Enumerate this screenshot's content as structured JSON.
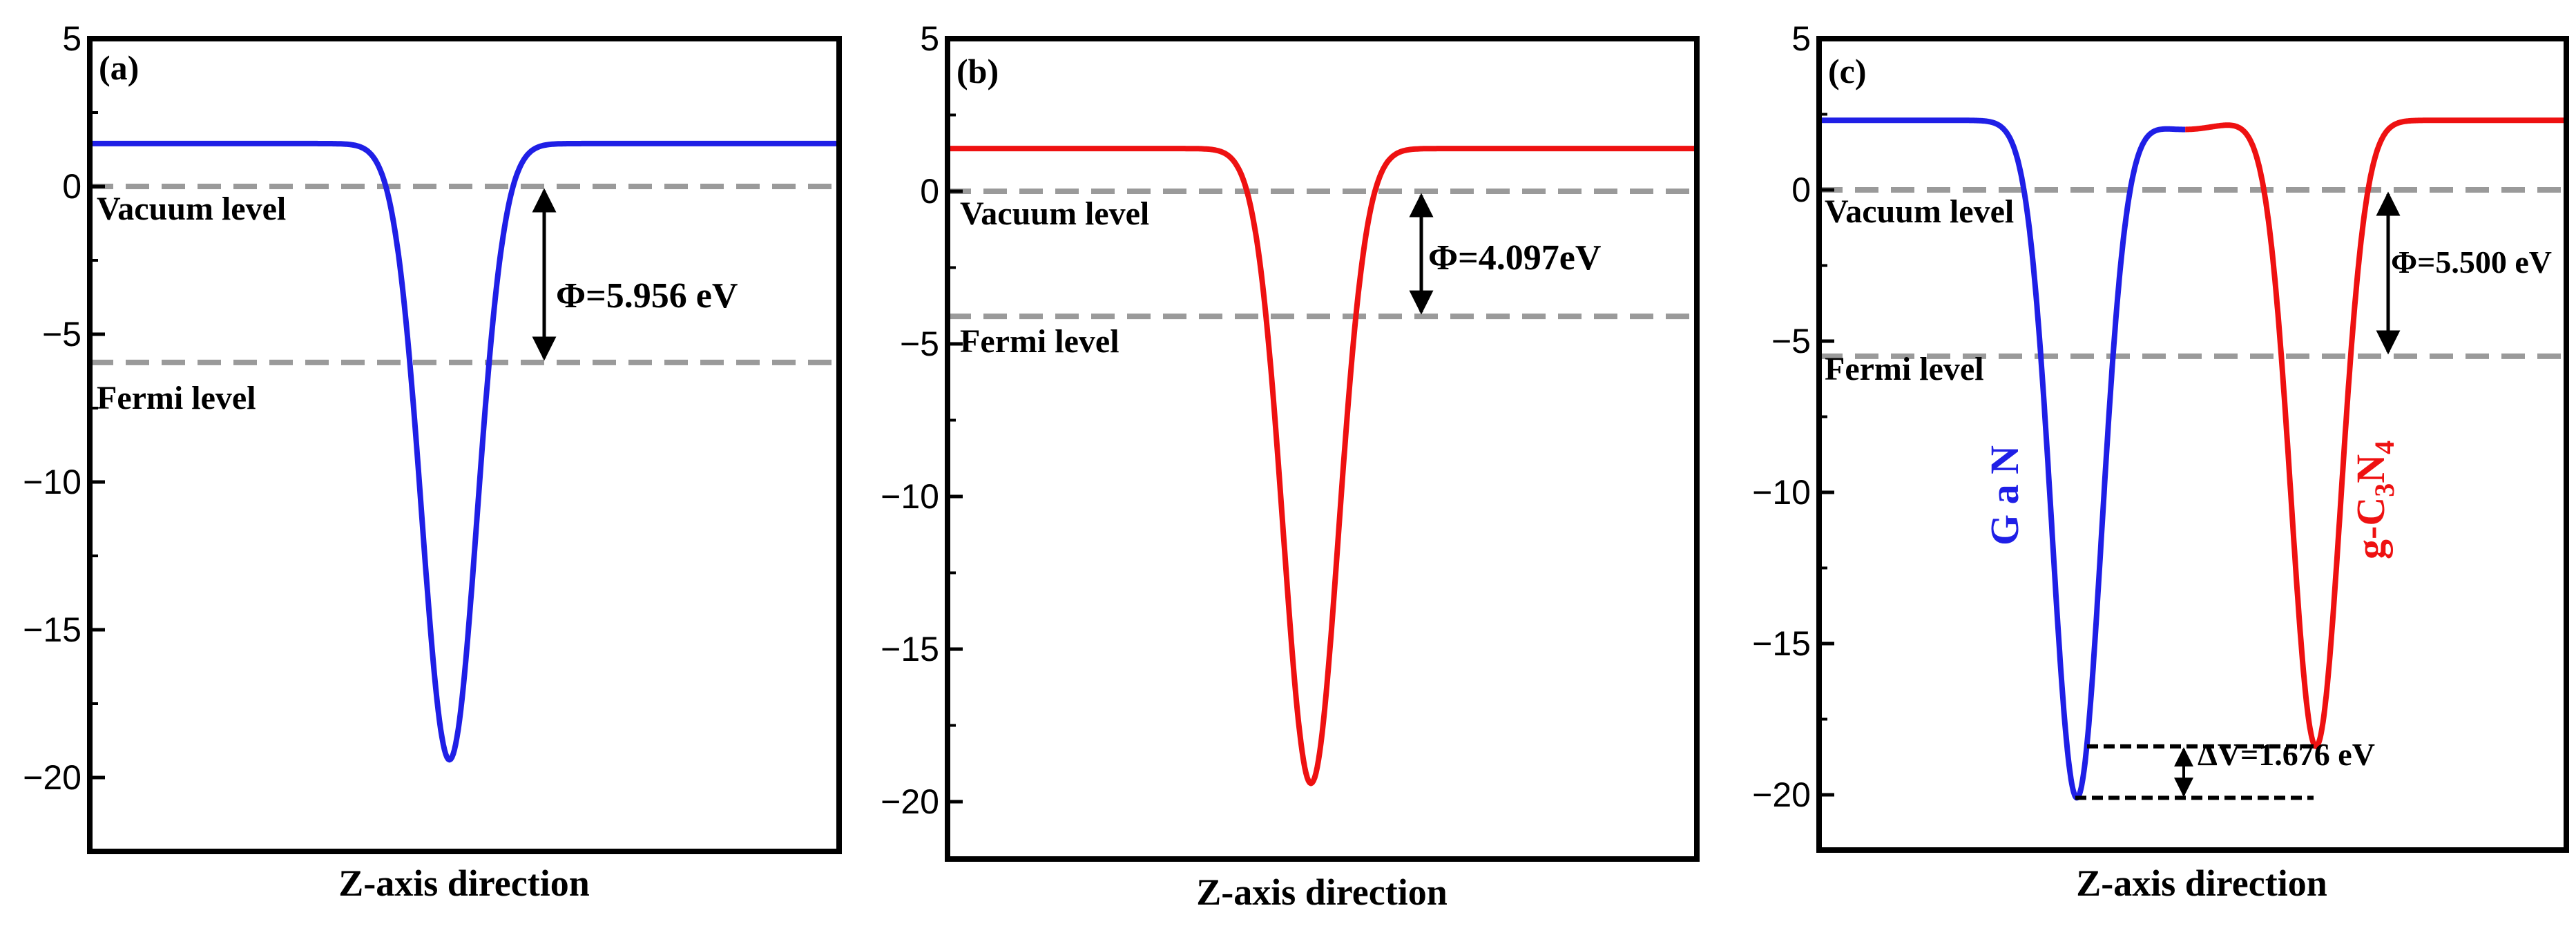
{
  "chart_data": [
    {
      "type": "line",
      "panel_label": "(a)",
      "xlabel": "Z-axis direction",
      "ylabel": "",
      "ylim": [
        -22.5,
        5
      ],
      "yticks": [
        5,
        0,
        -5,
        -10,
        -15,
        -20
      ],
      "ytick_labels": [
        "5",
        "0",
        "−5",
        "−10",
        "−15",
        "−20"
      ],
      "series": [
        {
          "name": "potential",
          "color": "#1f1fe6",
          "plateau": 1.45,
          "wells": [
            {
              "center": 0.48,
              "depth": -19.4,
              "width": 0.052
            }
          ]
        }
      ],
      "reference_lines": [
        {
          "name": "vacuum",
          "label": "Vacuum level",
          "value": 0
        },
        {
          "name": "fermi",
          "label": "Fermi level",
          "value": -5.956
        }
      ],
      "annotations": [
        {
          "kind": "phi",
          "text": "Φ=5.956 eV",
          "from": 0,
          "to": -5.956
        }
      ]
    },
    {
      "type": "line",
      "panel_label": "(b)",
      "xlabel": "Z-axis direction",
      "ylabel": "",
      "ylim": [
        -22.5,
        5
      ],
      "yticks": [
        5,
        0,
        -5,
        -10,
        -15,
        -20
      ],
      "ytick_labels": [
        "5",
        "0",
        "−5",
        "−10",
        "−15",
        "−20"
      ],
      "series": [
        {
          "name": "potential",
          "color": "#ee1111",
          "plateau": 1.4,
          "wells": [
            {
              "center": 0.485,
              "depth": -19.4,
              "width": 0.052
            }
          ]
        }
      ],
      "reference_lines": [
        {
          "name": "vacuum",
          "label": "Vacuum level",
          "value": 0
        },
        {
          "name": "fermi",
          "label": "Fermi level",
          "value": -4.097
        }
      ],
      "annotations": [
        {
          "kind": "phi",
          "text": "Φ=4.097eV",
          "from": 0,
          "to": -4.097
        }
      ]
    },
    {
      "type": "line",
      "panel_label": "(c)",
      "xlabel": "Z-axis direction",
      "ylabel": "",
      "ylim": [
        -22.5,
        5
      ],
      "yticks": [
        5,
        0,
        -5,
        -10,
        -15,
        -20
      ],
      "ytick_labels": [
        "5",
        "0",
        "−5",
        "−10",
        "−15",
        "−20"
      ],
      "series": [
        {
          "name": "GaN",
          "label_main": "G a N",
          "color": "#1f1fe6",
          "range": [
            0,
            0.49
          ],
          "plateau": 2.3,
          "peak": 2.0,
          "wells": [
            {
              "center": 0.345,
              "depth": -20.1,
              "width": 0.047
            }
          ]
        },
        {
          "name": "g-C3N4",
          "label_main": "g-C",
          "label_sub1": "3",
          "label_n": "N",
          "label_sub2": "4",
          "color": "#ee1111",
          "range": [
            0.49,
            1
          ],
          "plateau": 2.3,
          "peak": 2.0,
          "wells": [
            {
              "center": 0.665,
              "depth": -18.4,
              "width": 0.047
            }
          ]
        }
      ],
      "reference_lines": [
        {
          "name": "vacuum",
          "label": "Vacuum level",
          "value": 0
        },
        {
          "name": "fermi",
          "label": "Fermi level",
          "value": -5.5
        }
      ],
      "annotations": [
        {
          "kind": "phi",
          "text": "Φ=5.500 eV",
          "from": 0,
          "to": -5.5
        },
        {
          "kind": "delta",
          "text": "ΔV=1.676 eV",
          "from": -18.4,
          "to": -20.1
        }
      ]
    }
  ]
}
